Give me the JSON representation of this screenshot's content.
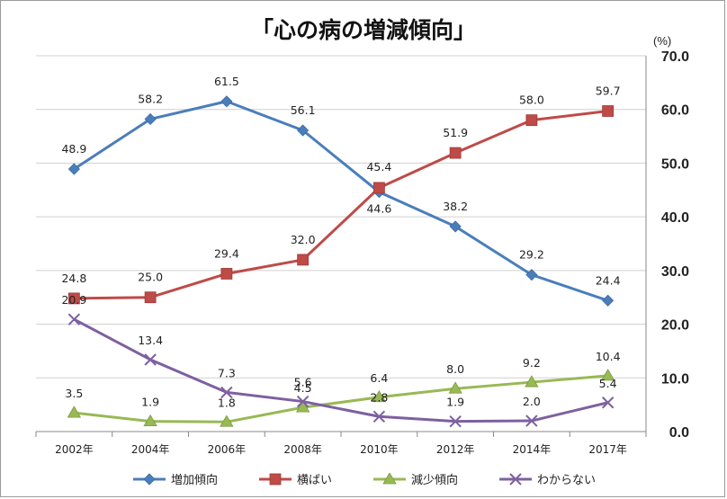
{
  "chart_data": {
    "type": "line",
    "title": "「心の病の増減傾向」",
    "ylabel": "(%)",
    "categories": [
      "2002年",
      "2004年",
      "2006年",
      "2008年",
      "2010年",
      "2012年",
      "2014年",
      "2017年"
    ],
    "ylim": [
      0,
      70
    ],
    "yticks": [
      "0.0",
      "10.0",
      "20.0",
      "30.0",
      "40.0",
      "50.0",
      "60.0",
      "70.0"
    ],
    "grid": true,
    "legend_position": "bottom",
    "series": [
      {
        "name": "増加傾向",
        "color": "#4a7ebb",
        "marker": "diamond",
        "values": [
          48.9,
          58.2,
          61.5,
          56.1,
          44.6,
          38.2,
          29.2,
          24.4
        ],
        "labels": [
          "48.9",
          "58.2",
          "61.5",
          "56.1",
          "44.6",
          "38.2",
          "29.2",
          "24.4"
        ]
      },
      {
        "name": "横ばい",
        "color": "#be4b48",
        "marker": "square",
        "values": [
          24.8,
          25.0,
          29.4,
          32.0,
          45.4,
          51.9,
          58.0,
          59.7
        ],
        "labels": [
          "24.8",
          "25.0",
          "29.4",
          "32.0",
          "45.4",
          "51.9",
          "58.0",
          "59.7"
        ]
      },
      {
        "name": "減少傾向",
        "color": "#98b954",
        "marker": "triangle",
        "values": [
          3.5,
          1.9,
          1.8,
          4.5,
          6.4,
          8.0,
          9.2,
          10.4
        ],
        "labels": [
          "3.5",
          "1.9",
          "1.8",
          "4.5",
          "6.4",
          "8.0",
          "9.2",
          "10.4"
        ]
      },
      {
        "name": "わからない",
        "color": "#7d60a0",
        "marker": "x",
        "values": [
          20.9,
          13.4,
          7.3,
          5.6,
          2.8,
          1.9,
          2.0,
          5.4
        ],
        "labels": [
          "20.9",
          "13.4",
          "7.3",
          "5.6",
          "2.8",
          "1.9",
          "2.0",
          "5.4"
        ]
      }
    ]
  }
}
